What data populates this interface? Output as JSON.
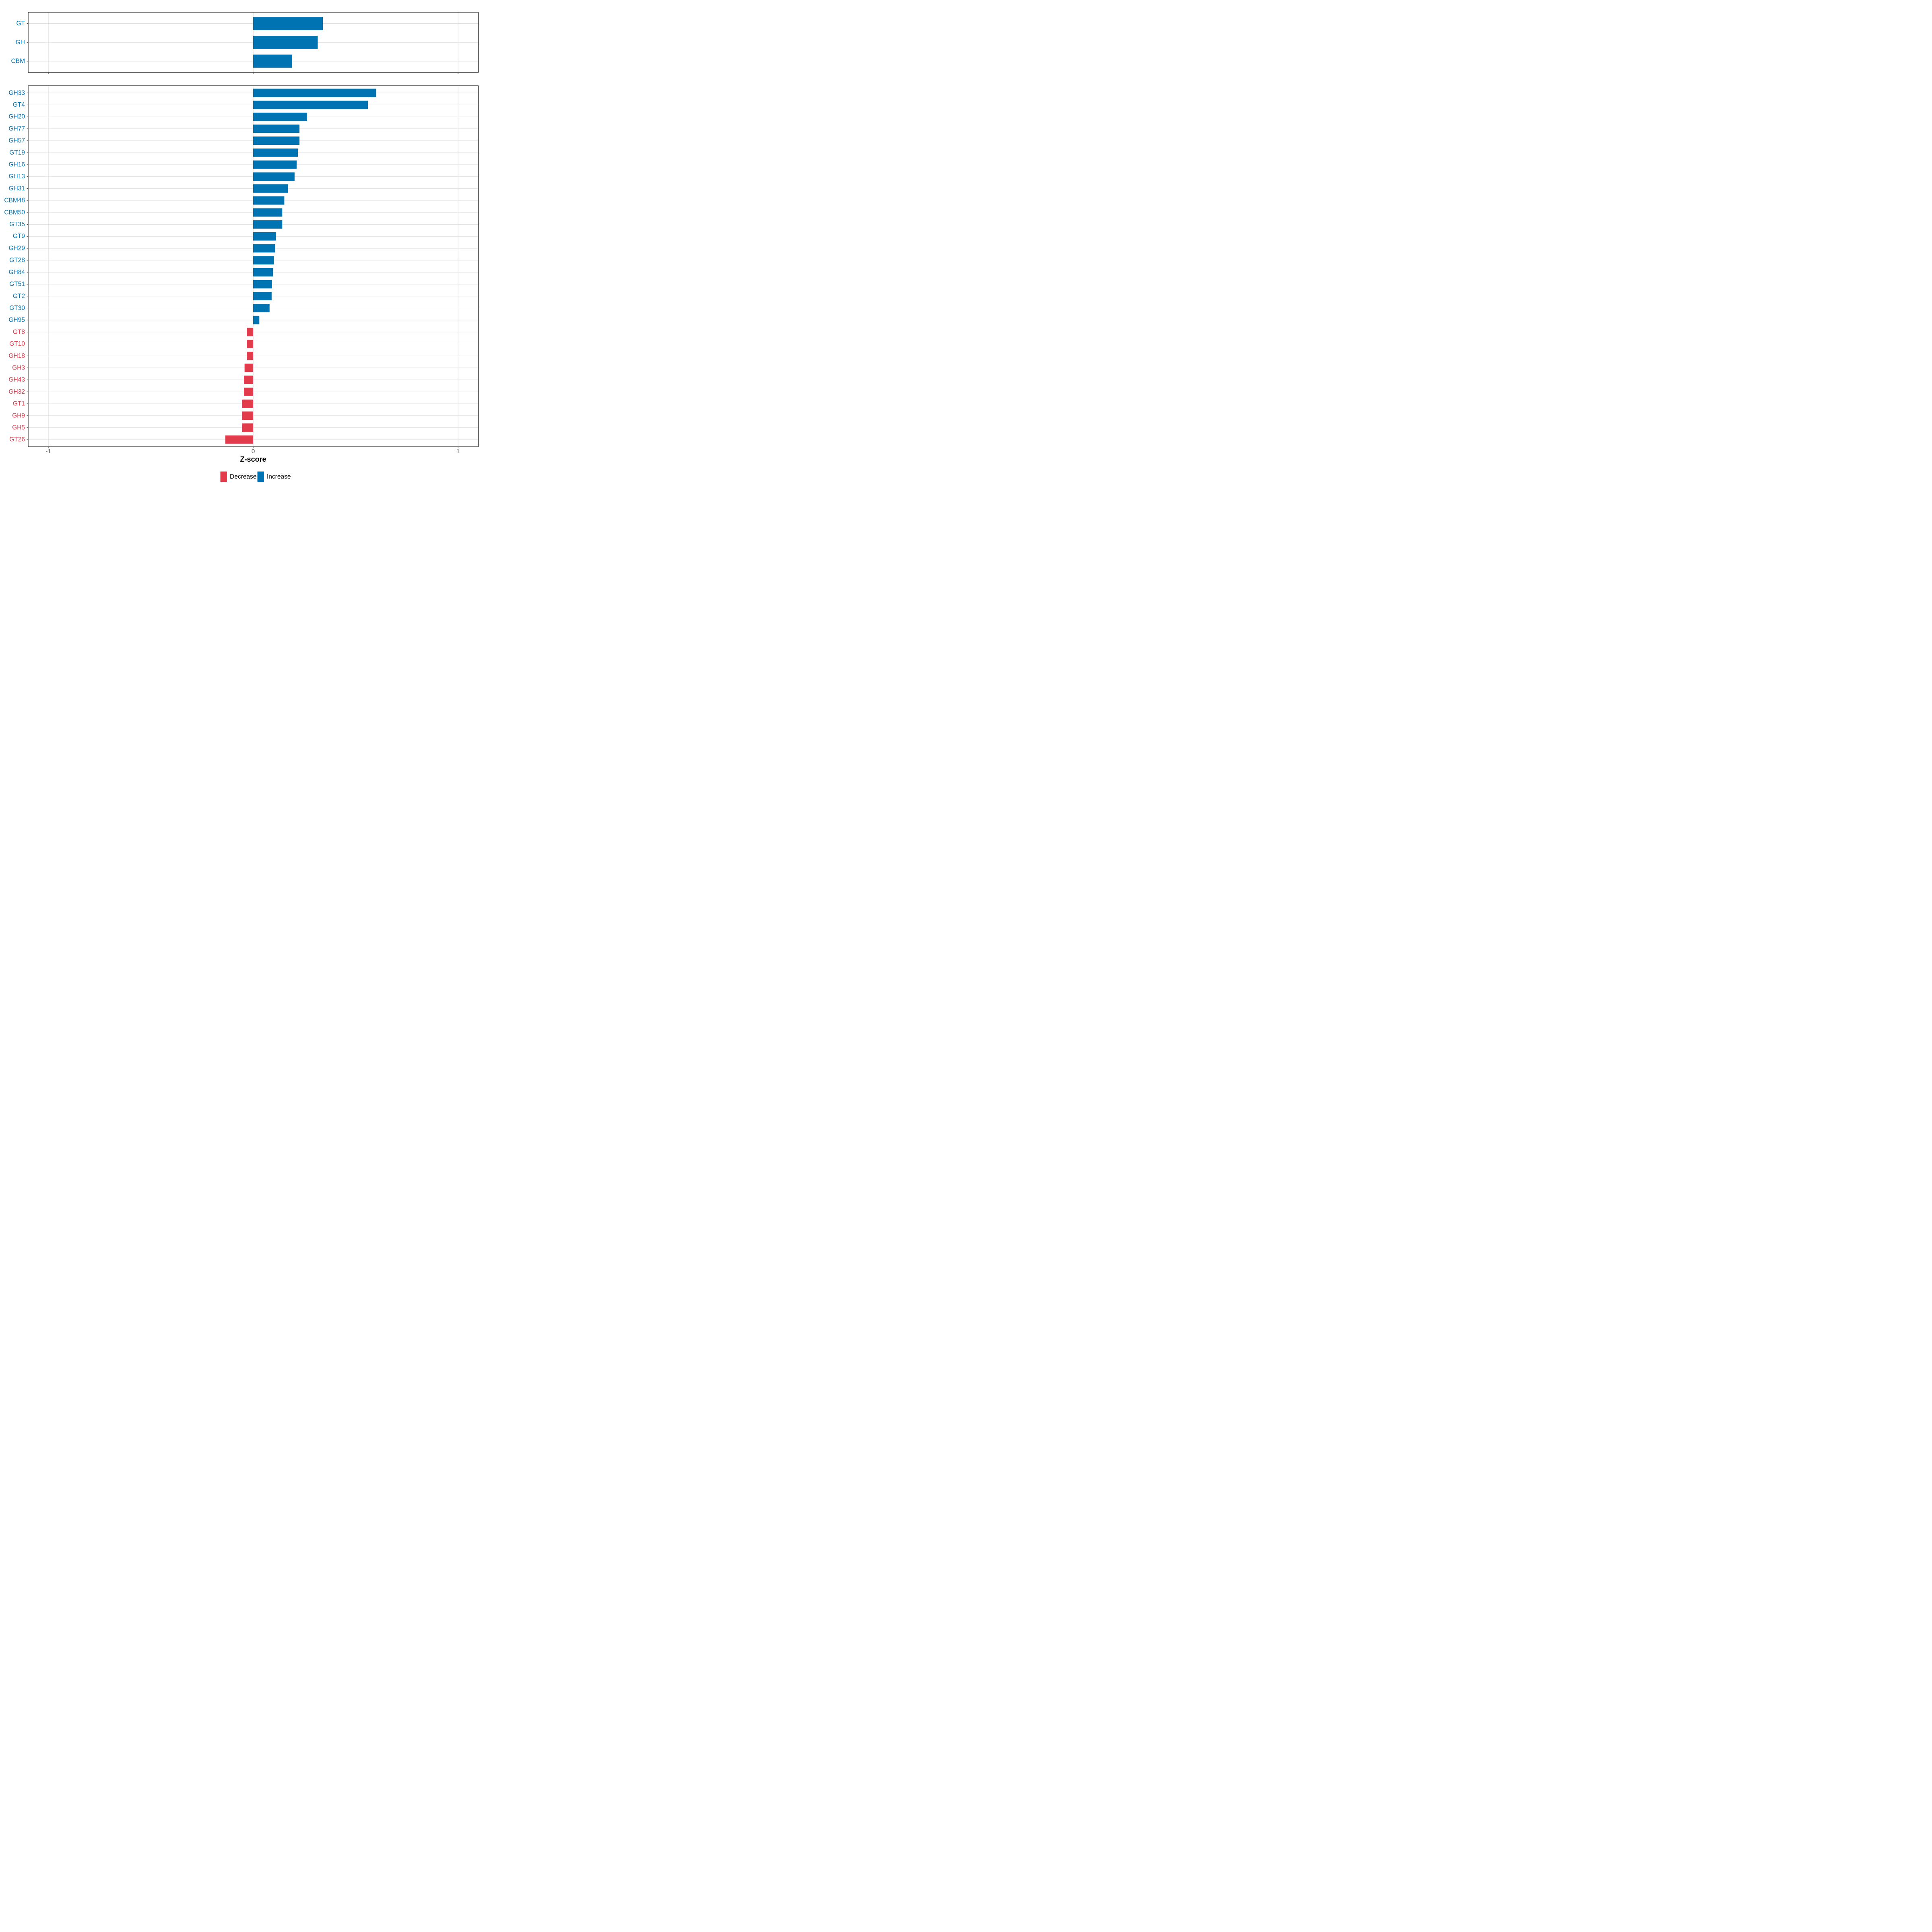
{
  "chart_data": {
    "type": "bar",
    "orientation": "horizontal",
    "title": "",
    "xlabel": "Z-score",
    "ylabel": "",
    "xlim": [
      -1.1,
      1.1
    ],
    "x_ticks": [
      -1,
      0,
      1
    ],
    "x_tick_labels": [
      "-1",
      "0",
      "1"
    ],
    "grid": "major-only",
    "legend_position": "bottom",
    "colors": {
      "increase": "#0073B2",
      "decrease": "#E23B4C"
    },
    "legend": [
      {
        "label": "Decrease",
        "key": "decrease",
        "color": "#E23B4C"
      },
      {
        "label": "Increase",
        "key": "increase",
        "color": "#0073B2"
      }
    ],
    "panels": [
      {
        "name": "class-summary",
        "categories": [
          "GT",
          "GH",
          "CBM"
        ],
        "values": [
          0.34,
          0.315,
          0.19
        ]
      },
      {
        "name": "family-detail",
        "categories": [
          "GH33",
          "GT4",
          "GH20",
          "GH77",
          "GH57",
          "GT19",
          "GH16",
          "GH13",
          "GH31",
          "CBM48",
          "CBM50",
          "GT35",
          "GT9",
          "GH29",
          "GT28",
          "GH84",
          "GT51",
          "GT2",
          "GT30",
          "GH95",
          "GT8",
          "GT10",
          "GH18",
          "GH3",
          "GH43",
          "GH32",
          "GT1",
          "GH9",
          "GH5",
          "GT26"
        ],
        "values": [
          0.6,
          0.56,
          0.263,
          0.226,
          0.226,
          0.218,
          0.212,
          0.202,
          0.17,
          0.152,
          0.142,
          0.142,
          0.11,
          0.107,
          0.101,
          0.097,
          0.092,
          0.09,
          0.08,
          0.03,
          -0.031,
          -0.031,
          -0.031,
          -0.042,
          -0.045,
          -0.045,
          -0.055,
          -0.055,
          -0.055,
          -0.136
        ]
      }
    ]
  },
  "styles": {
    "grid_color": "#DDDDDD",
    "panel_border_color": "#222222",
    "tick_color": "#333333",
    "axis_text_color": "#4D4D4D",
    "axis_title_color": "#000000",
    "legend_text_color": "#000000",
    "background": "#FFFFFF"
  }
}
